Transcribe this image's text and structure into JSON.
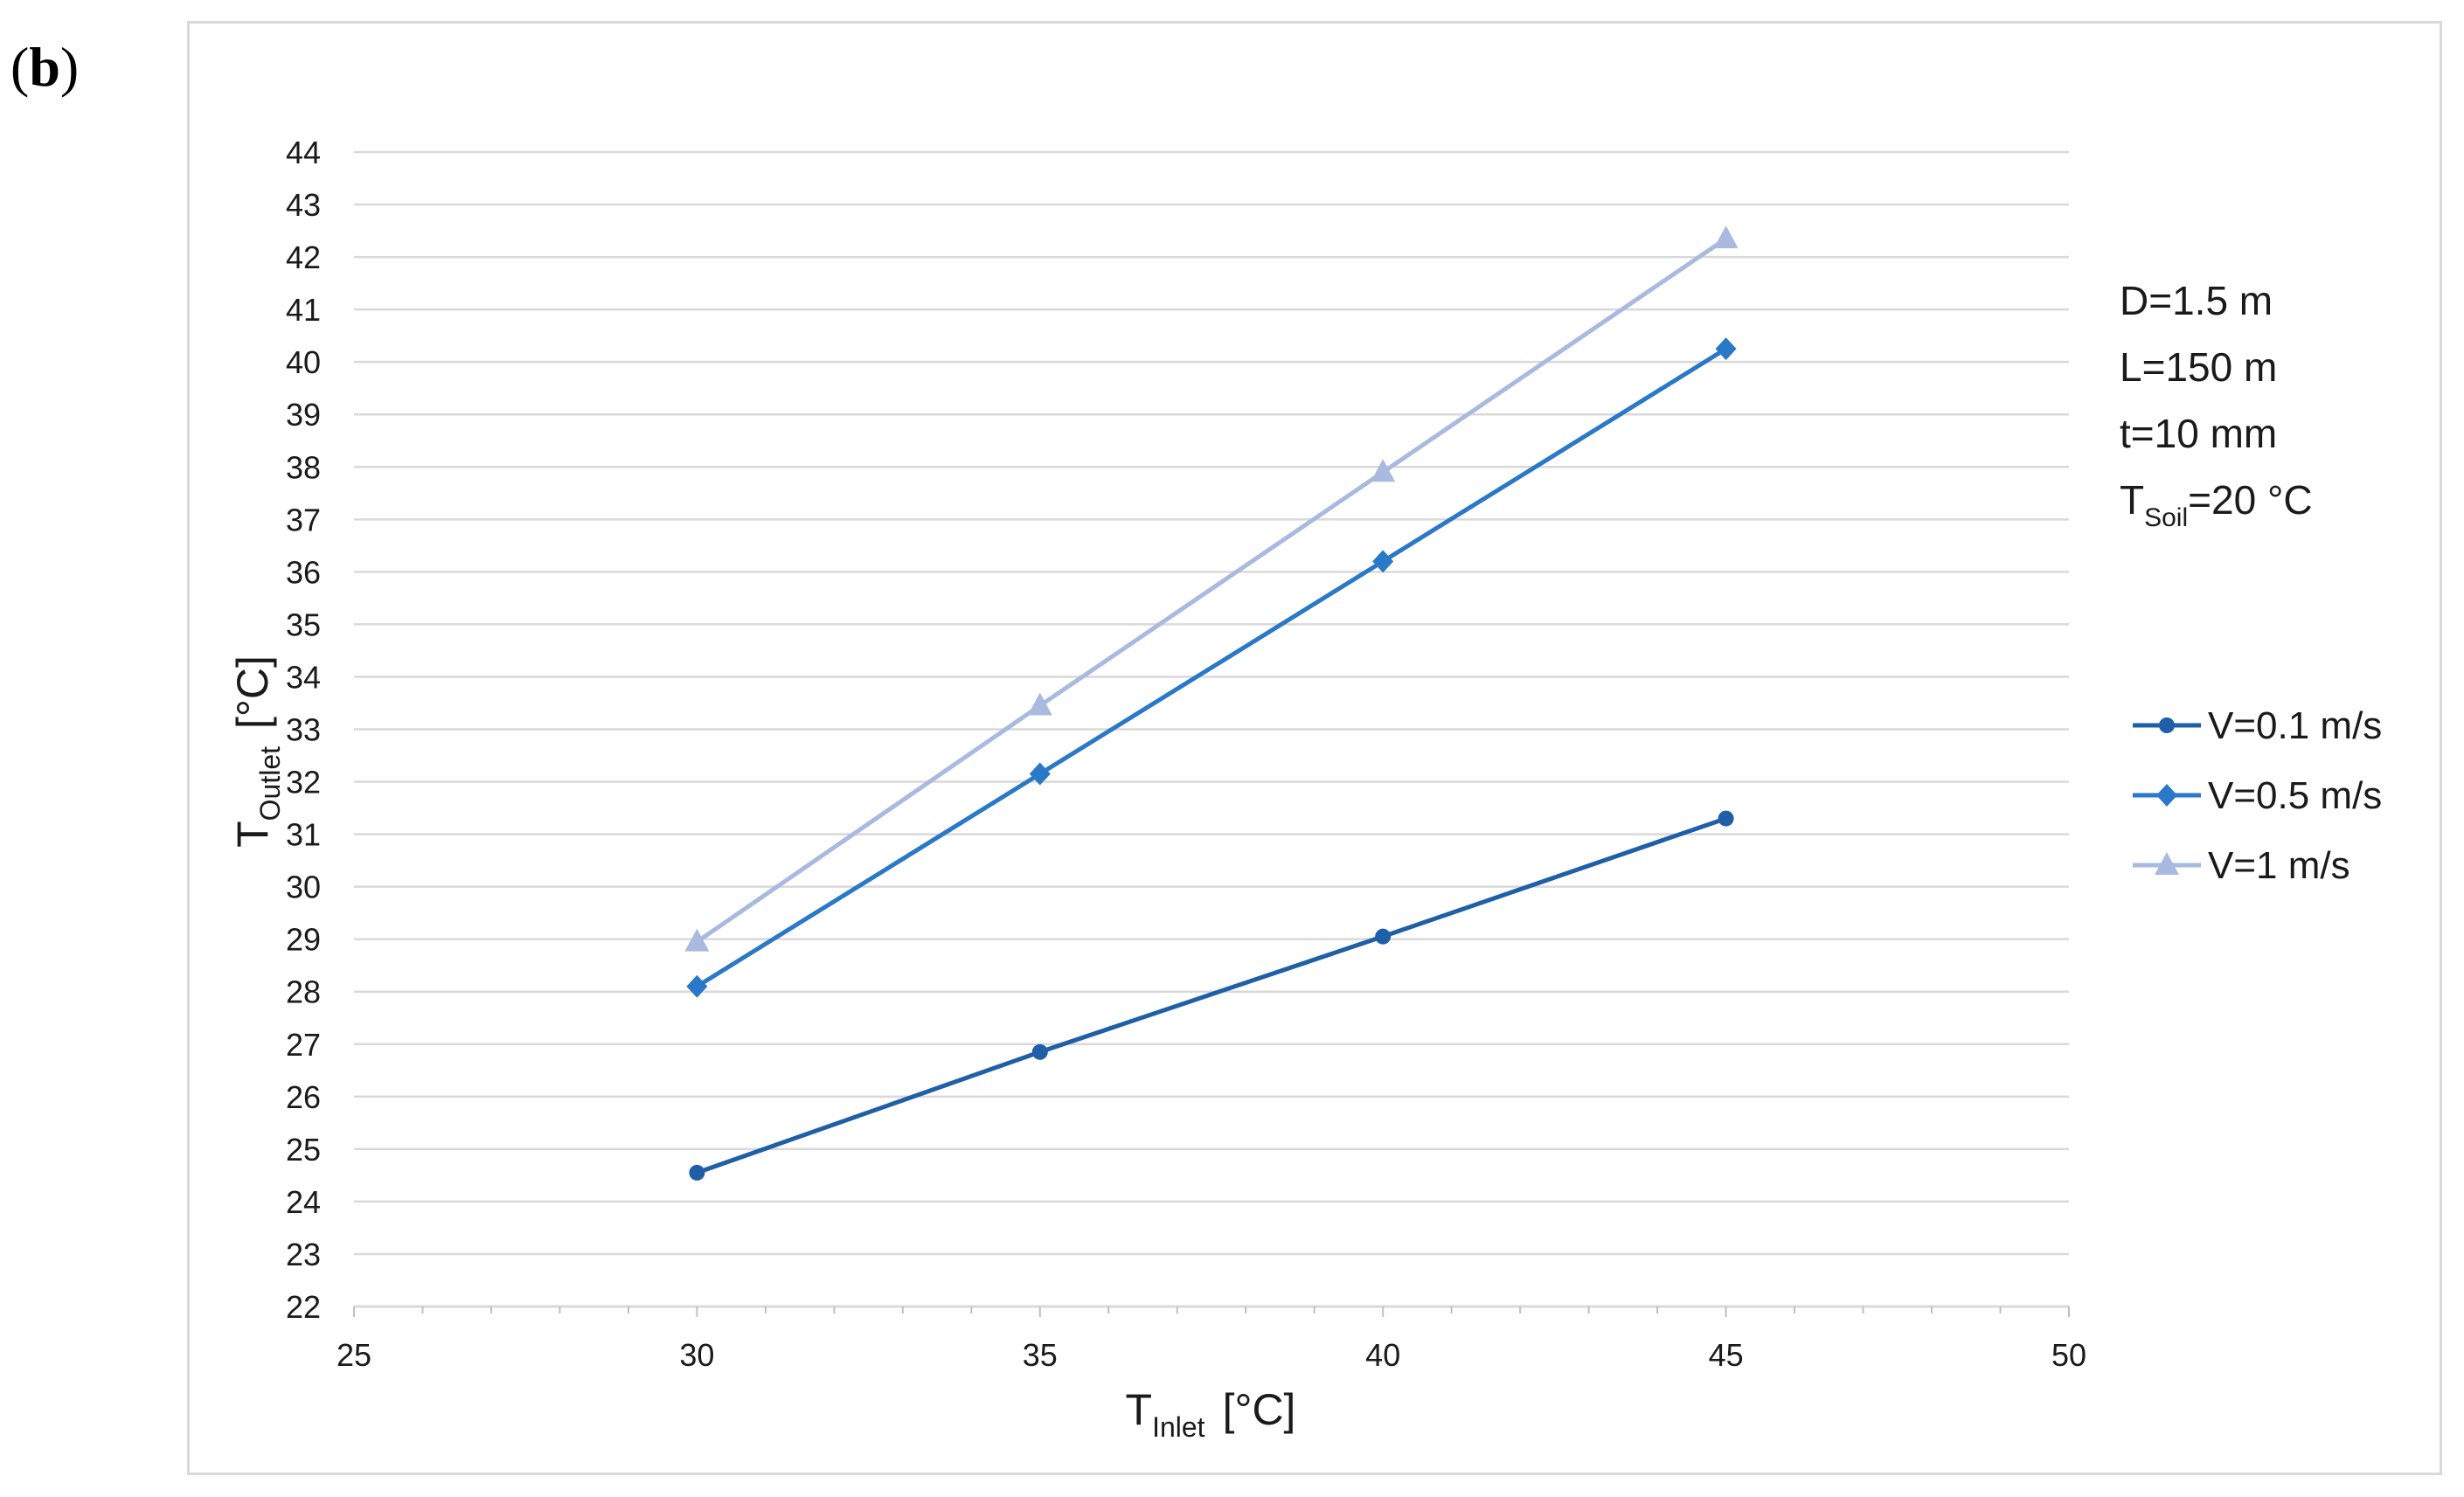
{
  "panel_label": {
    "open": "(",
    "letter": "b",
    "close": ")"
  },
  "chart_data": {
    "type": "scatter",
    "xlabel": {
      "main": "T",
      "sub": "Inlet",
      "unit": "[°C]"
    },
    "ylabel": {
      "main": "T",
      "sub": "Outlet",
      "unit": "[°C]"
    },
    "xlim": [
      25,
      50
    ],
    "ylim": [
      22,
      44
    ],
    "x_ticks": [
      25,
      30,
      35,
      40,
      45,
      50
    ],
    "y_ticks": [
      22,
      23,
      24,
      25,
      26,
      27,
      28,
      29,
      30,
      31,
      32,
      33,
      34,
      35,
      36,
      37,
      38,
      39,
      40,
      41,
      42,
      43,
      44
    ],
    "grid": "horizontal",
    "legend_position": "right",
    "annotations": [
      {
        "main": "D=1.5 m",
        "sub": "",
        "rest": ""
      },
      {
        "main": "L=150 m",
        "sub": "",
        "rest": ""
      },
      {
        "main": "t=10 mm",
        "sub": "",
        "rest": ""
      },
      {
        "main": "T",
        "sub": "Soil",
        "rest": "=20 °C"
      }
    ],
    "series": [
      {
        "name": "V=0.1 m/s",
        "color": "#1f5fa8",
        "marker": "circle",
        "x": [
          30,
          35,
          40,
          45
        ],
        "y": [
          24.55,
          26.85,
          29.05,
          31.3
        ]
      },
      {
        "name": "V=0.5 m/s",
        "color": "#2a78c8",
        "marker": "diamond",
        "x": [
          30,
          35,
          40,
          45
        ],
        "y": [
          28.1,
          32.15,
          36.2,
          40.25
        ]
      },
      {
        "name": "V=1 m/s",
        "color": "#a9b9e0",
        "marker": "triangle",
        "x": [
          30,
          35,
          40,
          45
        ],
        "y": [
          28.95,
          33.45,
          37.9,
          42.35
        ]
      }
    ]
  }
}
